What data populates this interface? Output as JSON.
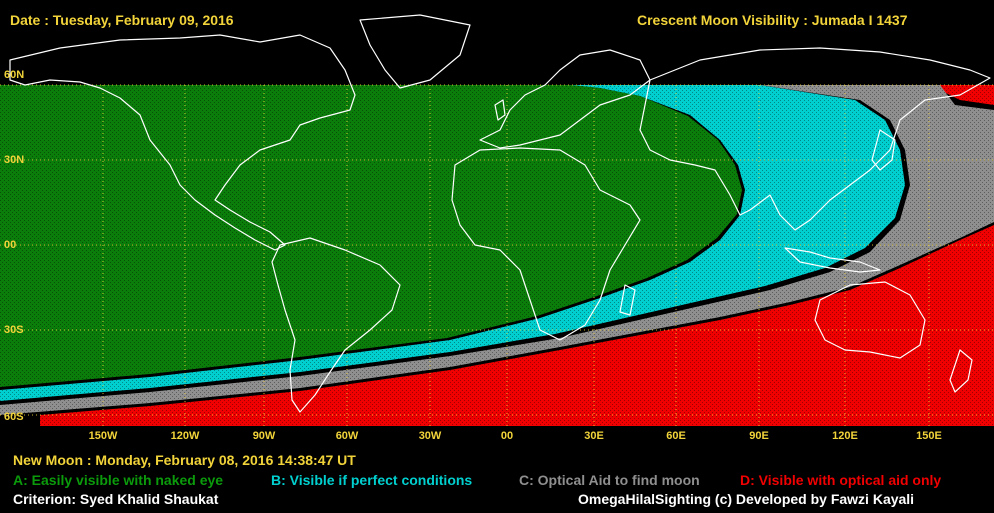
{
  "header": {
    "date_text": "Date : Tuesday, February 09, 2016",
    "title_text": "Crescent Moon Visibility : Jumada I  1437"
  },
  "axes": {
    "lat_labels": [
      "60N",
      "30N",
      "00",
      "30S",
      "60S"
    ],
    "lon_labels": [
      "150W",
      "120W",
      "90W",
      "60W",
      "30W",
      "00",
      "30E",
      "60E",
      "90E",
      "120E",
      "150E"
    ]
  },
  "zones": [
    {
      "key": "A",
      "color": "#0b7d0b",
      "text": "A: Easily visible with naked eye"
    },
    {
      "key": "B",
      "color": "#00cfcf",
      "text": "B: Visible if perfect conditions"
    },
    {
      "key": "C",
      "color": "#8f8f8f",
      "text": "C: Optical Aid to find moon"
    },
    {
      "key": "D",
      "color": "#f00000",
      "text": "D: Visible with optical aid only"
    }
  ],
  "footer": {
    "new_moon_text": "New Moon : Monday, February 08, 2016  14:38:47  UT",
    "criterion_text": "Criterion: Syed Khalid Shaukat",
    "credit_text": "OmegaHilalSighting  (c) Developed by Fawzi Kayali"
  },
  "colors": {
    "label_yellow": "#f2d43a",
    "background": "#000000",
    "coastline": "#ffffff",
    "grid": "#f2d43a"
  }
}
